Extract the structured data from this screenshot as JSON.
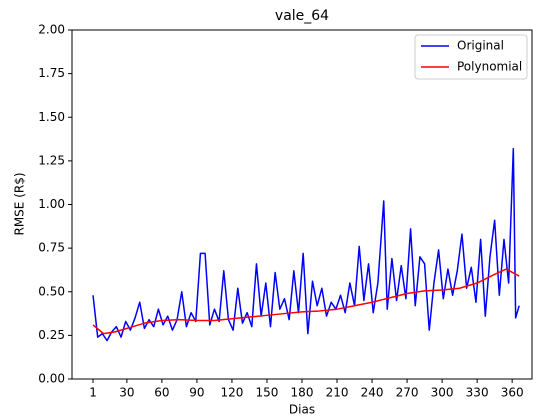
{
  "chart_data": {
    "type": "line",
    "title": "vale_64",
    "xlabel": "Dias",
    "ylabel": "RMSE (R$)",
    "xlim": [
      -17,
      377
    ],
    "ylim": [
      0,
      2
    ],
    "xticks": [
      1,
      30,
      60,
      90,
      120,
      150,
      180,
      210,
      240,
      270,
      300,
      330,
      360
    ],
    "yticks": [
      {
        "value": 0,
        "label": "0.00"
      },
      0.25,
      {
        "value": 0.5,
        "label": "0.50"
      },
      0.75,
      {
        "value": 1,
        "label": "1.00"
      },
      1.25,
      {
        "value": 1.5,
        "label": "1.50"
      },
      1.75,
      {
        "value": 2,
        "label": "2.00"
      }
    ],
    "grid": false,
    "legend": "upper right",
    "series": [
      {
        "name": "Original",
        "color": "#0000ff",
        "x": [
          1,
          5,
          9,
          13,
          17,
          21,
          25,
          29,
          33,
          37,
          41,
          45,
          49,
          53,
          57,
          61,
          65,
          69,
          73,
          77,
          81,
          85,
          89,
          93,
          97,
          101,
          105,
          109,
          113,
          117,
          121,
          125,
          129,
          133,
          137,
          141,
          145,
          149,
          153,
          157,
          161,
          165,
          169,
          173,
          177,
          181,
          185,
          189,
          193,
          197,
          201,
          205,
          209,
          213,
          217,
          221,
          225,
          229,
          233,
          237,
          241,
          245,
          250,
          253,
          257,
          261,
          265,
          269,
          273,
          277,
          281,
          285,
          289,
          293,
          297,
          301,
          305,
          309,
          313,
          317,
          321,
          325,
          329,
          333,
          337,
          341,
          345,
          349,
          353,
          357,
          361,
          363,
          366
        ],
        "values": [
          0.48,
          0.24,
          0.26,
          0.22,
          0.27,
          0.3,
          0.24,
          0.33,
          0.28,
          0.35,
          0.44,
          0.29,
          0.34,
          0.3,
          0.4,
          0.31,
          0.36,
          0.28,
          0.34,
          0.5,
          0.3,
          0.38,
          0.33,
          0.72,
          0.72,
          0.31,
          0.4,
          0.33,
          0.62,
          0.34,
          0.28,
          0.52,
          0.32,
          0.38,
          0.3,
          0.66,
          0.36,
          0.55,
          0.3,
          0.61,
          0.4,
          0.46,
          0.34,
          0.62,
          0.38,
          0.72,
          0.26,
          0.56,
          0.42,
          0.52,
          0.36,
          0.44,
          0.4,
          0.48,
          0.38,
          0.55,
          0.42,
          0.76,
          0.45,
          0.66,
          0.38,
          0.55,
          1.02,
          0.4,
          0.69,
          0.45,
          0.65,
          0.46,
          0.86,
          0.42,
          0.7,
          0.66,
          0.28,
          0.55,
          0.74,
          0.46,
          0.63,
          0.48,
          0.62,
          0.83,
          0.52,
          0.64,
          0.44,
          0.8,
          0.36,
          0.7,
          0.91,
          0.48,
          0.8,
          0.55,
          1.32,
          0.35,
          0.42
        ]
      },
      {
        "name": "Polynomial",
        "color": "#ff0000",
        "x": [
          1,
          10,
          20,
          30,
          45,
          60,
          75,
          90,
          105,
          120,
          135,
          150,
          165,
          180,
          195,
          210,
          225,
          240,
          255,
          270,
          285,
          300,
          315,
          330,
          345,
          355,
          366
        ],
        "values": [
          0.31,
          0.26,
          0.27,
          0.29,
          0.32,
          0.335,
          0.34,
          0.335,
          0.335,
          0.345,
          0.355,
          0.365,
          0.375,
          0.385,
          0.39,
          0.4,
          0.42,
          0.44,
          0.465,
          0.49,
          0.505,
          0.51,
          0.52,
          0.55,
          0.6,
          0.63,
          0.59
        ]
      }
    ]
  }
}
